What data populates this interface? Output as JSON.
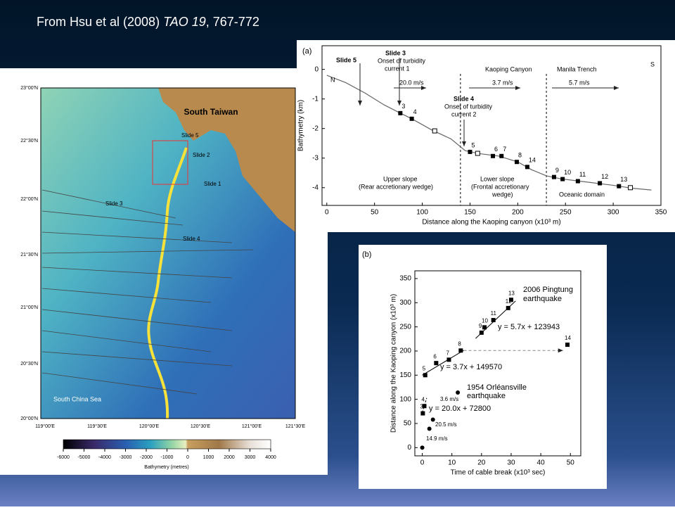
{
  "slide": {
    "title": "From Hsu et al (2008) ",
    "title_italic": "TAO 19",
    "title_rest": ", 767-772"
  },
  "map": {
    "place_labels": [
      "South Taiwan",
      "South China Sea"
    ],
    "slide_labels": [
      "Slide 5",
      "Slide 2",
      "Slide 1",
      "Slide 3",
      "Slide 4"
    ],
    "lat_ticks": [
      "23°00'N",
      "22°30'N",
      "22°00'N",
      "21°30'N",
      "21°00'N",
      "20°30'N",
      "20°00'N"
    ],
    "lon_ticks": [
      "119°00'E",
      "119°30'E",
      "120°00'E",
      "120°30'E",
      "121°00'E",
      "121°30'E"
    ],
    "colorbar": {
      "label": "Bathymetry (metres)",
      "lim": [
        -6000,
        4000
      ],
      "ticks": [
        -6000,
        -5000,
        -4000,
        -3000,
        -2000,
        -1000,
        0,
        1000,
        2000,
        3000,
        4000
      ]
    }
  },
  "chart_data": [
    {
      "type": "line",
      "panel": "(a)",
      "xlabel": "Distance along the Kaoping canyon (x10³ m)",
      "ylabel": "Bathymetry (km)",
      "xlim": [
        -5,
        350
      ],
      "ylim": [
        -4.6,
        0.8
      ],
      "xticks": [
        0,
        50,
        100,
        150,
        200,
        250,
        300,
        350
      ],
      "yticks": [
        0,
        -1,
        -2,
        -3,
        -4
      ],
      "x": [
        0,
        20,
        40,
        60,
        77,
        89,
        110,
        130,
        145,
        160,
        180,
        200,
        215,
        230,
        245,
        270,
        300,
        320,
        340
      ],
      "values": [
        -0.2,
        -0.45,
        -0.8,
        -1.2,
        -1.48,
        -1.67,
        -2.05,
        -2.35,
        -2.75,
        -2.85,
        -2.93,
        -3.13,
        -3.4,
        -3.6,
        -3.7,
        -3.8,
        -3.92,
        -4.02,
        -4.08
      ],
      "stations": {
        "labels": [
          3,
          4,
          5,
          6,
          7,
          8,
          14,
          9,
          10,
          11,
          12,
          13
        ],
        "x": [
          77,
          89,
          150,
          174,
          183,
          199,
          210,
          238,
          247,
          263,
          286,
          306
        ],
        "y": [
          -1.48,
          -1.67,
          -2.79,
          -2.93,
          -2.93,
          -3.13,
          -3.3,
          -3.64,
          -3.71,
          -3.78,
          -3.85,
          -3.95
        ]
      },
      "open_points": {
        "x": [
          113,
          158,
          318
        ],
        "y": [
          -2.08,
          -2.84,
          -4.0
        ]
      },
      "boundaries": [
        140,
        230
      ],
      "annotations": [
        "Slide 5",
        "N",
        "Slide 3",
        "Onset of turbidity",
        "current 1",
        "20.0 m/s",
        "Kaoping Canyon",
        "3.7 m/s",
        "Manila Trench",
        "5.7 m/s",
        "S",
        "Slide 4",
        "Onset of turbidity",
        "current 2",
        "Upper slope",
        "(Rear accretionary wedge)",
        "Lower slope",
        "(Frontal accretionary",
        "wedge)",
        "Oceanic domain"
      ]
    },
    {
      "type": "scatter",
      "panel": "(b)",
      "xlabel": "Time of cable break (x10³ sec)",
      "ylabel": "Distance along the Kaoping canyon (x10³ m)",
      "xlim": [
        -2.5,
        53.5
      ],
      "ylim": [
        -17,
        366
      ],
      "xticks": [
        0,
        10,
        20,
        30,
        40,
        50
      ],
      "yticks": [
        0,
        50,
        100,
        150,
        200,
        250,
        300,
        350
      ],
      "squares": {
        "labels": [
          5,
          6,
          7,
          8,
          9,
          10,
          11,
          12,
          13,
          14,
          3,
          4
        ],
        "x": [
          1,
          4.7,
          9,
          13,
          20,
          21,
          24,
          29,
          30,
          49,
          0.2,
          0.7
        ],
        "y": [
          150,
          175,
          182,
          201,
          238,
          249,
          264,
          289,
          306,
          213,
          71,
          86
        ]
      },
      "circles": {
        "x": [
          0,
          2.4,
          3.6,
          12
        ],
        "y": [
          0,
          39,
          58,
          114
        ]
      },
      "fits": [
        {
          "x": [
            18,
            31.5
          ],
          "y": [
            226,
            303.5
          ]
        },
        {
          "x": [
            0,
            14
          ],
          "y": [
            150,
            201.4
          ]
        },
        {
          "x": [
            0,
            1.5
          ],
          "y": [
            72.8,
            102.8
          ]
        }
      ],
      "annotations": [
        "2006 Pingtung",
        "earthquake",
        "y = 5.7x + 123943",
        "y = 3.7x + 149570",
        "1954 Orléansville",
        "earthquake",
        "3.6 m/s",
        "y = 20.0x + 72800",
        "20.5 m/s",
        "14.9 m/s"
      ]
    }
  ]
}
